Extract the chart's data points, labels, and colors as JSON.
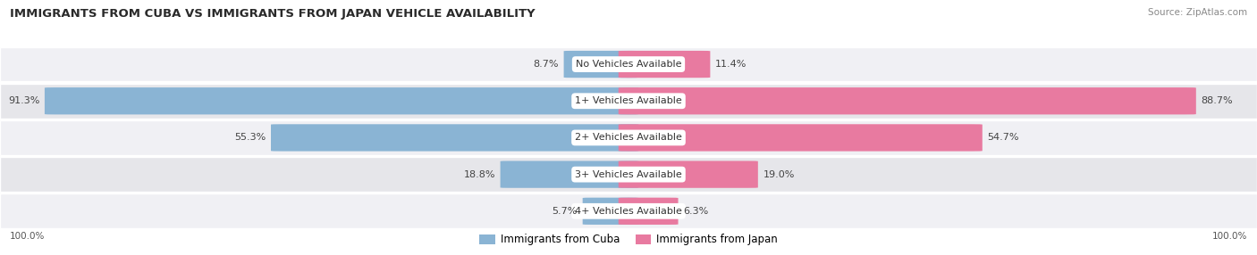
{
  "title": "IMMIGRANTS FROM CUBA VS IMMIGRANTS FROM JAPAN VEHICLE AVAILABILITY",
  "source": "Source: ZipAtlas.com",
  "categories": [
    "No Vehicles Available",
    "1+ Vehicles Available",
    "2+ Vehicles Available",
    "3+ Vehicles Available",
    "4+ Vehicles Available"
  ],
  "cuba_values": [
    8.7,
    91.3,
    55.3,
    18.8,
    5.7
  ],
  "japan_values": [
    11.4,
    88.7,
    54.7,
    19.0,
    6.3
  ],
  "cuba_color": "#8ab4d4",
  "japan_color": "#e87aa0",
  "row_bg_odd": "#f0f0f4",
  "row_bg_even": "#e6e6ea",
  "label_color": "#555555",
  "title_color": "#2a2a2a",
  "source_color": "#888888",
  "value_color": "#444444",
  "legend_cuba": "Immigrants from Cuba",
  "legend_japan": "Immigrants from Japan",
  "max_value": 100.0,
  "figsize": [
    14.06,
    2.86
  ],
  "dpi": 100
}
